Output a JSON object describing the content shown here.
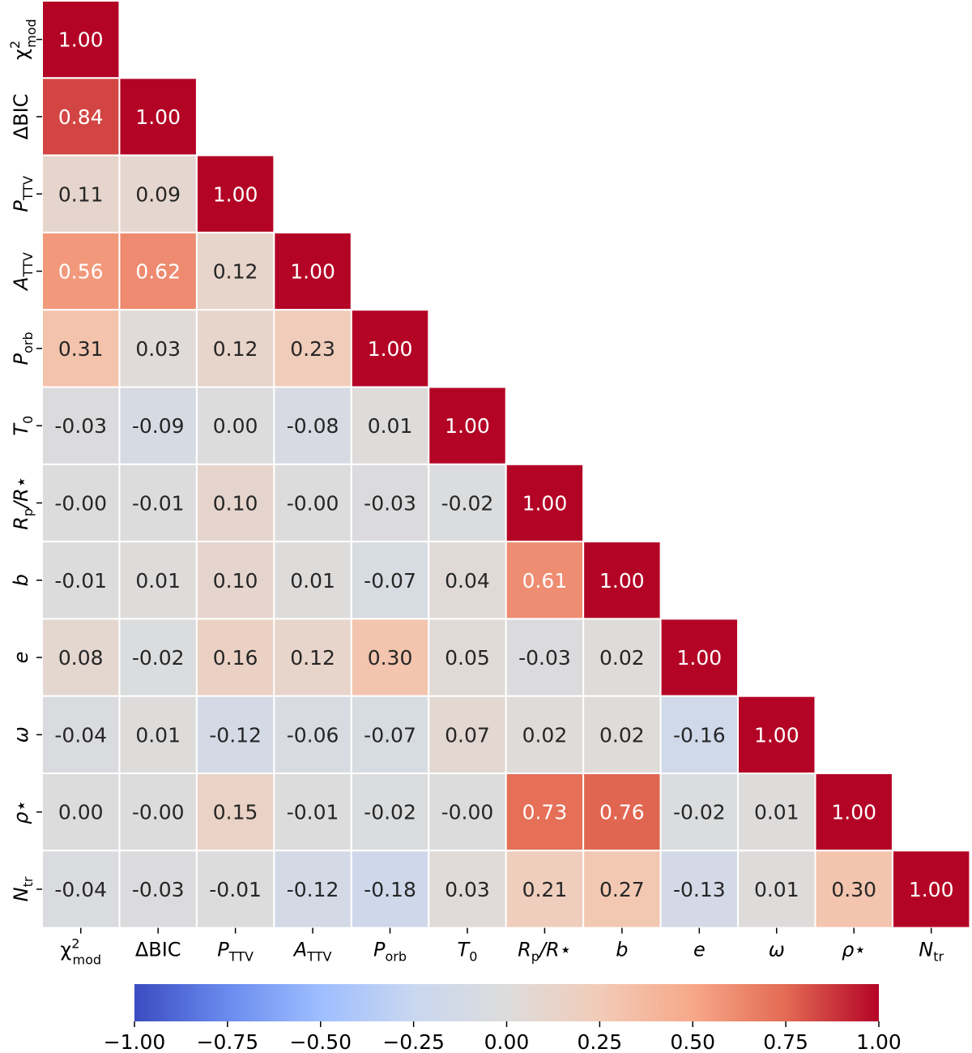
{
  "chart_data": {
    "type": "heatmap",
    "title": "",
    "variables": [
      {
        "base": "χ",
        "sup": "2",
        "sub": "mod",
        "italic": false
      },
      {
        "base": "ΔBIC",
        "sup": "",
        "sub": "",
        "italic": false
      },
      {
        "base": "P",
        "sup": "",
        "sub": "TTV",
        "italic": true
      },
      {
        "base": "A",
        "sup": "",
        "sub": "TTV",
        "italic": true
      },
      {
        "base": "P",
        "sup": "",
        "sub": "orb",
        "italic": true
      },
      {
        "base": "T",
        "sup": "",
        "sub": "0",
        "italic": true
      },
      {
        "base": "R",
        "sup": "",
        "sub": "p",
        "tail": "/R⋆",
        "italic": true
      },
      {
        "base": "b",
        "sup": "",
        "sub": "",
        "italic": true
      },
      {
        "base": "e",
        "sup": "",
        "sub": "",
        "italic": true
      },
      {
        "base": "ω",
        "sup": "",
        "sub": "",
        "italic": true
      },
      {
        "base": "ρ⋆",
        "sup": "",
        "sub": "",
        "italic": true
      },
      {
        "base": "N",
        "sup": "",
        "sub": "tr",
        "italic": true
      }
    ],
    "matrix": [
      [
        1.0
      ],
      [
        0.84,
        1.0
      ],
      [
        0.11,
        0.09,
        1.0
      ],
      [
        0.56,
        0.62,
        0.12,
        1.0
      ],
      [
        0.31,
        0.03,
        0.12,
        0.23,
        1.0
      ],
      [
        -0.03,
        -0.09,
        0.0,
        -0.08,
        0.01,
        1.0
      ],
      [
        -0.0,
        -0.01,
        0.1,
        -0.0,
        -0.03,
        -0.02,
        1.0
      ],
      [
        -0.01,
        0.01,
        0.1,
        0.01,
        -0.07,
        0.04,
        0.61,
        1.0
      ],
      [
        0.08,
        -0.02,
        0.16,
        0.12,
        0.3,
        0.05,
        -0.03,
        0.02,
        1.0
      ],
      [
        -0.04,
        0.01,
        -0.12,
        -0.06,
        -0.07,
        0.07,
        0.02,
        0.02,
        -0.16,
        1.0
      ],
      [
        0.0,
        -0.0,
        0.15,
        -0.01,
        -0.02,
        -0.0,
        0.73,
        0.76,
        -0.02,
        0.01,
        1.0
      ],
      [
        -0.04,
        -0.03,
        -0.01,
        -0.12,
        -0.18,
        0.03,
        0.21,
        0.27,
        -0.13,
        0.01,
        0.3,
        1.0
      ]
    ],
    "colorbar": {
      "range": [
        -1.0,
        1.0
      ],
      "ticks": [
        -1.0,
        -0.75,
        -0.5,
        -0.25,
        0.0,
        0.25,
        0.5,
        0.75,
        1.0
      ],
      "tick_labels": [
        "−1.00",
        "−0.75",
        "−0.50",
        "−0.25",
        "0.00",
        "0.25",
        "0.50",
        "0.75",
        "1.00"
      ],
      "orientation": "horizontal",
      "colormap": "coolwarm"
    },
    "number_format": "2 decimals"
  },
  "colors": {
    "cmap_stops": [
      "#3b4cc0",
      "#6a8bef",
      "#9ebeff",
      "#c9d7f0",
      "#dddcdc",
      "#f2cbb7",
      "#f7a889",
      "#e36a53",
      "#b40426"
    ],
    "cell_border": "#ffffff",
    "light_text": "#ffffff",
    "dark_text": "#262626"
  }
}
